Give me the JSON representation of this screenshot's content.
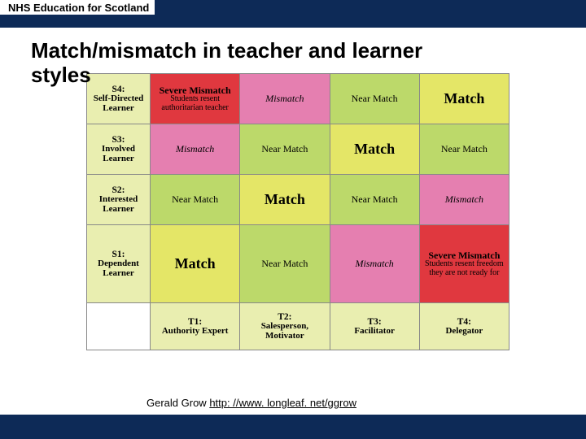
{
  "header": {
    "org": "NHS Education for Scotland"
  },
  "title_line1": "Match/mismatch in teacher and learner",
  "title_line2": "styles",
  "attribution": {
    "prefix": "Gerald Grow ",
    "link_text": "http: //www. longleaf. net/ggrow"
  },
  "colors": {
    "nhs_navy": "#0d2a57",
    "header_cell": "#e9eeb0",
    "severe": "#e0383f",
    "mismatch": "#e57fb0",
    "near": "#bcd96a",
    "match": "#e4e667"
  },
  "rows": [
    {
      "code": "S4:",
      "label": "Self-Directed Learner"
    },
    {
      "code": "S3:",
      "label": "Involved Learner"
    },
    {
      "code": "S2:",
      "label": "Interested Learner"
    },
    {
      "code": "S1:",
      "label": "Dependent Learner"
    }
  ],
  "cols": [
    {
      "code": "T1:",
      "label": "Authority Expert"
    },
    {
      "code": "T2:",
      "label": "Salesperson, Motivator"
    },
    {
      "code": "T3:",
      "label": "Facilitator"
    },
    {
      "code": "T4:",
      "label": "Delegator"
    }
  ],
  "cells": [
    [
      "severe_top",
      "mismatch",
      "near",
      "match"
    ],
    [
      "mismatch",
      "near",
      "match",
      "near"
    ],
    [
      "near",
      "match",
      "near",
      "mismatch"
    ],
    [
      "match",
      "near",
      "mismatch",
      "severe_bottom"
    ]
  ],
  "labels": {
    "match": "Match",
    "near": "Near Match",
    "mismatch": "Mismatch",
    "severe_top_title": "Severe Mismatch",
    "severe_top_sub": "Students resent authoritarian teacher",
    "severe_bottom_title": "Severe Mismatch",
    "severe_bottom_sub": "Students resent freedom they are not ready for"
  }
}
